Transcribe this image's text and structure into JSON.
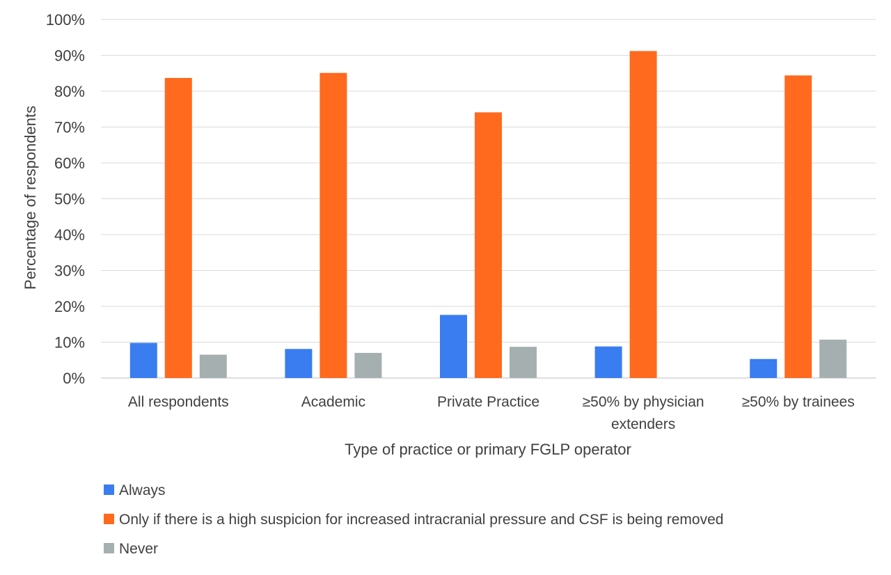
{
  "chart_data": {
    "type": "bar",
    "title": "",
    "xlabel": "Type of practice or primary FGLP operator",
    "ylabel": "Percentage of respondents",
    "ylim": [
      0,
      100
    ],
    "yticks": [
      0,
      10,
      20,
      30,
      40,
      50,
      60,
      70,
      80,
      90,
      100
    ],
    "ytick_labels": [
      "0%",
      "10%",
      "20%",
      "30%",
      "40%",
      "50%",
      "60%",
      "70%",
      "80%",
      "90%",
      "100%"
    ],
    "categories": [
      [
        "All respondents"
      ],
      [
        "Academic"
      ],
      [
        "Private Practice"
      ],
      [
        "≥50% by physician",
        "extenders"
      ],
      [
        "≥50% by trainees"
      ]
    ],
    "series": [
      {
        "name": "Always",
        "color": "#3a7df0",
        "values": [
          9.8,
          8.1,
          17.6,
          8.8,
          5.3
        ]
      },
      {
        "name": "Only if there is a high suspicion for increased intracranial pressure and CSF is being removed",
        "color": "#ff6a1f",
        "values": [
          83.7,
          85.1,
          74.1,
          91.2,
          84.4
        ]
      },
      {
        "name": "Never",
        "color": "#a5afaf",
        "values": [
          6.5,
          7.0,
          8.7,
          0,
          10.7
        ]
      }
    ],
    "grid": true,
    "legend_position": "bottom-left"
  }
}
